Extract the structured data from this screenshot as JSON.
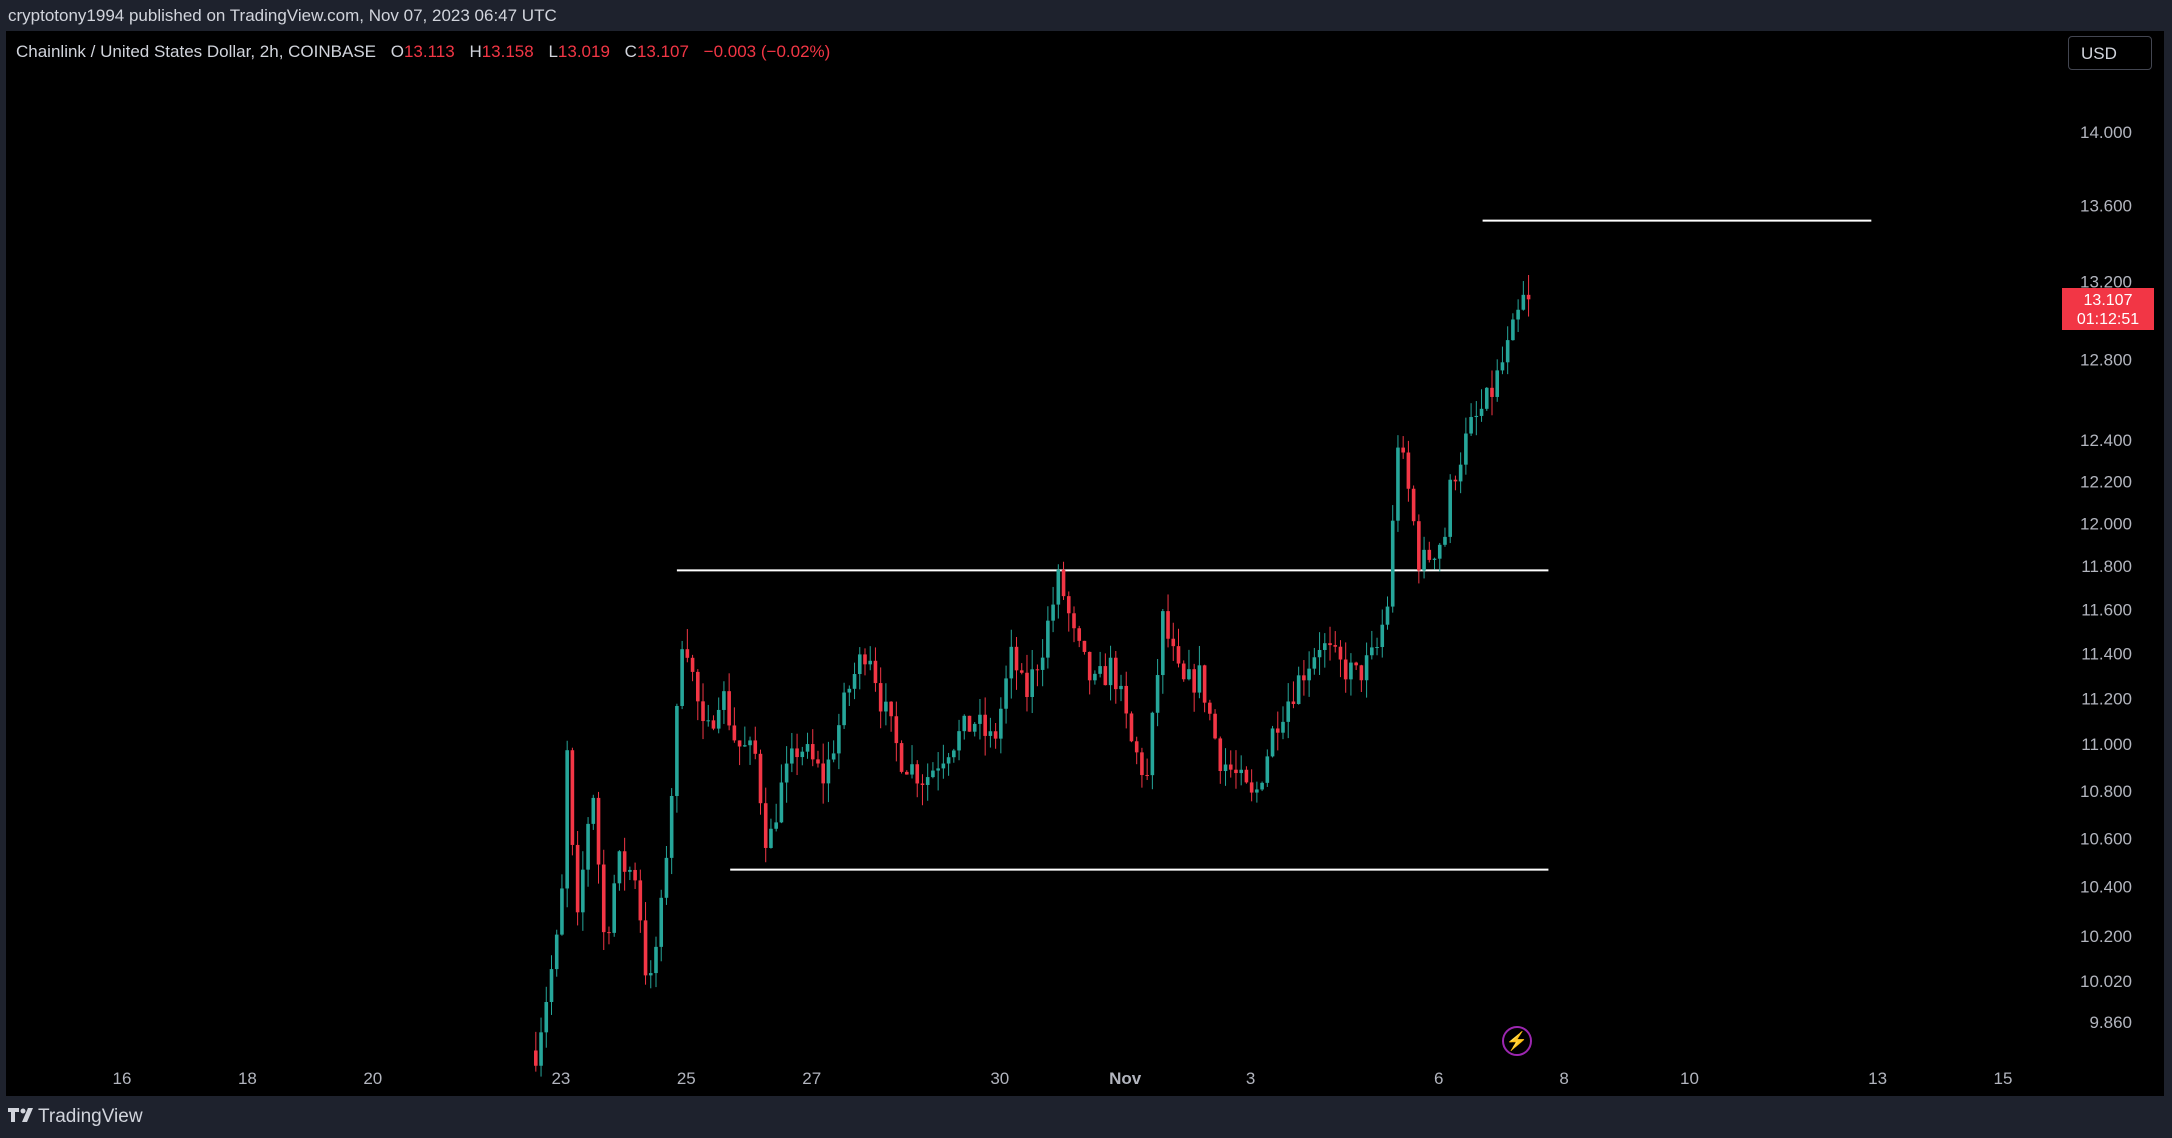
{
  "header": {
    "published": "cryptotony1994 published on TradingView.com, Nov 07, 2023 06:47 UTC"
  },
  "legend": {
    "symbol": "Chainlink / United States Dollar, 2h, COINBASE",
    "o_label": "O",
    "o": "13.113",
    "h_label": "H",
    "h": "13.158",
    "l_label": "L",
    "l": "13.019",
    "c_label": "C",
    "c": "13.107",
    "change": "−0.003 (−0.02%)"
  },
  "currency_button": "USD",
  "price_label": {
    "price": "13.107",
    "countdown": "01:12:51"
  },
  "footer": {
    "brand": "TradingView"
  },
  "icons": {
    "flash": "lightning-icon",
    "logo": "tradingview-logo-icon"
  },
  "colors": {
    "up": "#26a69a",
    "down": "#f23645",
    "background": "#000000",
    "text": "#b2b5be",
    "lines": "#ffffff"
  },
  "chart_data": {
    "type": "candlestick",
    "title": "Chainlink / United States Dollar, 2h, COINBASE",
    "y_scale": "log",
    "y_ticks": [
      "14.000",
      "13.600",
      "13.200",
      "12.800",
      "12.400",
      "12.200",
      "12.000",
      "11.800",
      "11.600",
      "11.400",
      "11.200",
      "11.000",
      "10.800",
      "10.600",
      "10.400",
      "10.200",
      "10.020",
      "9.860"
    ],
    "x_ticks": [
      {
        "label": "16",
        "day": 16
      },
      {
        "label": "18",
        "day": 18
      },
      {
        "label": "20",
        "day": 20
      },
      {
        "label": "23",
        "day": 23
      },
      {
        "label": "25",
        "day": 25
      },
      {
        "label": "27",
        "day": 27
      },
      {
        "label": "30",
        "day": 30
      },
      {
        "label": "Nov",
        "day": 32
      },
      {
        "label": "3",
        "day": 34
      },
      {
        "label": "6",
        "day": 37
      },
      {
        "label": "8",
        "day": 39
      },
      {
        "label": "10",
        "day": 41
      },
      {
        "label": "13",
        "day": 44
      },
      {
        "label": "15",
        "day": 46
      }
    ],
    "x_unit": "day of Oct 2023 (Nov 1 = 32)",
    "horizontal_lines": [
      {
        "price": 13.52,
        "from_day": 37.7,
        "to_day": 43.9
      },
      {
        "price": 11.78,
        "from_day": 24.85,
        "to_day": 38.75
      },
      {
        "price": 10.47,
        "from_day": 25.7,
        "to_day": 38.75
      }
    ],
    "waypoints": [
      [
        22.6,
        9.75
      ],
      [
        23.0,
        10.25
      ],
      [
        23.1,
        10.95
      ],
      [
        23.25,
        10.2
      ],
      [
        23.5,
        10.85
      ],
      [
        23.7,
        10.15
      ],
      [
        23.9,
        10.5
      ],
      [
        24.2,
        10.45
      ],
      [
        24.4,
        9.95
      ],
      [
        24.6,
        10.3
      ],
      [
        24.8,
        10.9
      ],
      [
        24.95,
        11.55
      ],
      [
        25.1,
        11.3
      ],
      [
        25.3,
        11.0
      ],
      [
        25.55,
        11.25
      ],
      [
        25.8,
        11.0
      ],
      [
        26.1,
        10.95
      ],
      [
        26.3,
        10.55
      ],
      [
        26.5,
        10.8
      ],
      [
        26.8,
        11.0
      ],
      [
        27.2,
        10.85
      ],
      [
        27.6,
        11.25
      ],
      [
        27.9,
        11.45
      ],
      [
        28.1,
        11.2
      ],
      [
        28.4,
        10.95
      ],
      [
        28.8,
        10.85
      ],
      [
        29.2,
        11.0
      ],
      [
        29.6,
        11.1
      ],
      [
        29.9,
        11.0
      ],
      [
        30.2,
        11.4
      ],
      [
        30.4,
        11.2
      ],
      [
        30.7,
        11.45
      ],
      [
        30.95,
        11.75
      ],
      [
        31.2,
        11.45
      ],
      [
        31.5,
        11.25
      ],
      [
        31.8,
        11.35
      ],
      [
        32.1,
        11.0
      ],
      [
        32.35,
        10.85
      ],
      [
        32.6,
        11.55
      ],
      [
        32.9,
        11.25
      ],
      [
        33.2,
        11.3
      ],
      [
        33.5,
        10.95
      ],
      [
        33.8,
        10.85
      ],
      [
        34.05,
        10.75
      ],
      [
        34.4,
        11.1
      ],
      [
        34.8,
        11.3
      ],
      [
        35.1,
        11.45
      ],
      [
        35.4,
        11.35
      ],
      [
        35.7,
        11.3
      ],
      [
        36.0,
        11.4
      ],
      [
        36.2,
        11.65
      ],
      [
        36.35,
        12.4
      ],
      [
        36.55,
        12.1
      ],
      [
        36.7,
        11.8
      ],
      [
        36.85,
        11.85
      ],
      [
        37.1,
        11.95
      ],
      [
        37.2,
        12.2
      ],
      [
        37.5,
        12.45
      ],
      [
        37.8,
        12.6
      ],
      [
        38.1,
        12.85
      ],
      [
        38.35,
        13.1
      ],
      [
        38.45,
        13.11
      ]
    ]
  }
}
